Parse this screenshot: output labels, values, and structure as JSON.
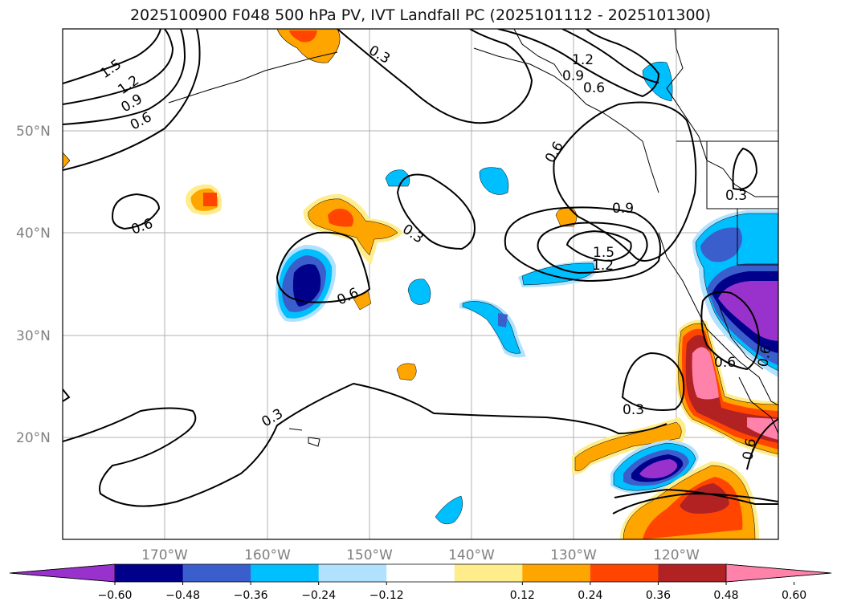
{
  "title": "2025100900 F048 500 hPa PV, IVT Landfall PC (2025101112 - 2025101300)",
  "lat_labels": [
    "50°N",
    "40°N",
    "30°N",
    "20°N"
  ],
  "lon_labels": [
    "170°W",
    "160°W",
    "150°W",
    "140°W",
    "130°W",
    "120°W"
  ],
  "contour_labels": [
    "1.5",
    "1.2",
    "0.9",
    "0.6",
    "0.3",
    "0.6",
    "1.2",
    "0.9",
    "0.6",
    "0.6",
    "0.9",
    "1.5",
    "1.2",
    "0.3",
    "0.6",
    "0.3",
    "0.6",
    "0.3",
    "0.3",
    "0.6",
    "0.6"
  ],
  "colorbar": {
    "colors": [
      "#9932cc",
      "#00008b",
      "#3a5fcd",
      "#00bfff",
      "#b0e2ff",
      "#ffffff",
      "#ffec8b",
      "#ffa500",
      "#ff4500",
      "#b22222",
      "#ff82ab"
    ],
    "ticks": [
      "−0.60",
      "−0.48",
      "−0.36",
      "−0.24",
      "−0.12",
      "0.12",
      "0.24",
      "0.36",
      "0.48",
      "0.60"
    ]
  }
}
